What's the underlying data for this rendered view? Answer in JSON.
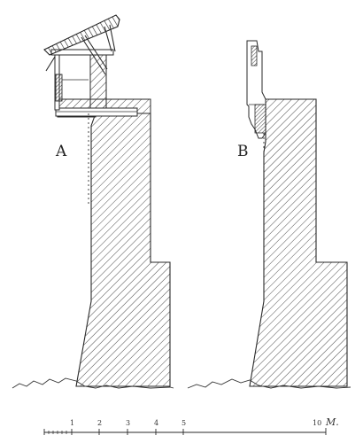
{
  "sections": [
    {
      "label": "A"
    },
    {
      "label": "B"
    }
  ],
  "scale_bar": {
    "ticks": [
      "1",
      "2",
      "3",
      "4",
      "5",
      "10"
    ],
    "unit": "M."
  },
  "colors": {
    "ink": "#2a2a2a",
    "paper": "#ffffff"
  }
}
